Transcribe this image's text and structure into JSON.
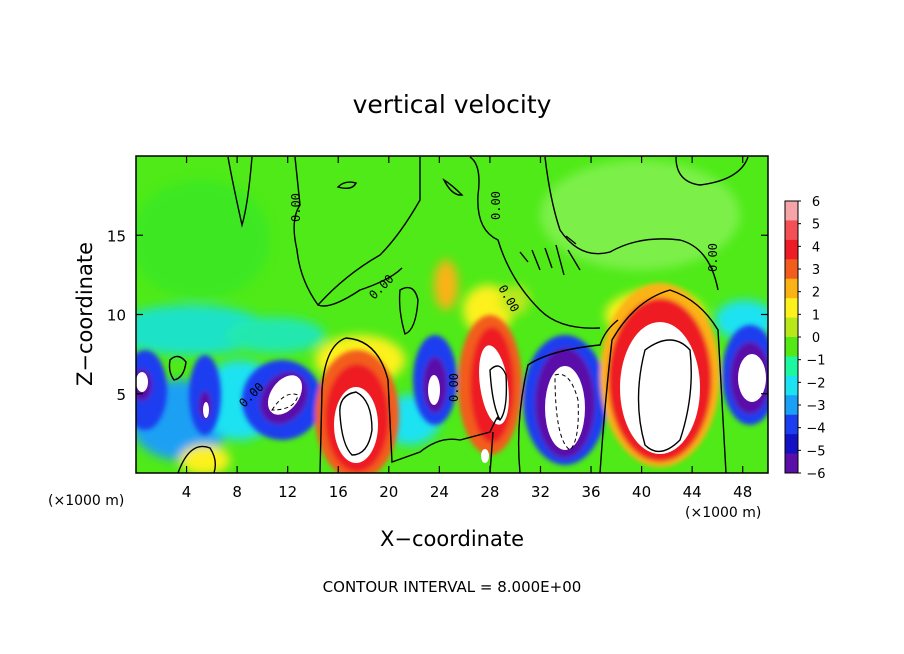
{
  "chart_data": {
    "type": "heatmap",
    "title": "vertical velocity",
    "xlabel": "X−coordinate",
    "ylabel": "Z−coordinate",
    "x_unit_left": "(×1000 m)",
    "x_unit_right": "(×1000 m)",
    "xlim": [
      0,
      50
    ],
    "ylim": [
      0,
      20
    ],
    "x_ticks": [
      4,
      8,
      12,
      16,
      20,
      24,
      28,
      32,
      36,
      40,
      44,
      48
    ],
    "y_ticks": [
      5,
      10,
      15
    ],
    "colorbar": {
      "ticks": [
        6,
        5,
        4,
        3,
        2,
        1,
        0,
        -1,
        -2,
        -3,
        -4,
        -5,
        -6
      ],
      "tick_labels": [
        "6",
        "5",
        "4",
        "3",
        "2",
        "1",
        "0",
        "−1",
        "−2",
        "−3",
        "−4",
        "−5",
        "−6"
      ],
      "colors": [
        "#f6a4a8",
        "#f44f55",
        "#ee1c24",
        "#f25d1e",
        "#fbb214",
        "#fcf11a",
        "#b8e81a",
        "#53e816",
        "#1cf7a0",
        "#1ce2f2",
        "#1aa0f4",
        "#1a3ef0",
        "#1410c4",
        "#5a0fa8"
      ]
    },
    "contour_interval_text": "CONTOUR INTERVAL = 8.000E+00",
    "contour_labels": [
      "0.00",
      "0.00",
      "0.00",
      "0.00",
      "0.00",
      "0.00",
      "0.00"
    ],
    "features": [
      {
        "kind": "updraft",
        "x_center": 17.5,
        "z_center": 3.0,
        "strength": 9
      },
      {
        "kind": "updraft",
        "x_center": 28.0,
        "z_center": 6.0,
        "strength": 8
      },
      {
        "kind": "updraft",
        "x_center": 41.5,
        "z_center": 5.5,
        "strength": 10
      },
      {
        "kind": "downdraft",
        "x_center": 12.0,
        "z_center": 5.0,
        "strength": -7
      },
      {
        "kind": "downdraft",
        "x_center": 24.5,
        "z_center": 5.5,
        "strength": -6
      },
      {
        "kind": "downdraft",
        "x_center": 33.5,
        "z_center": 4.5,
        "strength": -9
      },
      {
        "kind": "downdraft",
        "x_center": 48.0,
        "z_center": 6.0,
        "strength": -7
      },
      {
        "kind": "downdraft",
        "x_center": 0.5,
        "z_center": 6.0,
        "strength": -6
      },
      {
        "kind": "downdraft",
        "x_center": 5.5,
        "z_center": 4.0,
        "strength": -5
      }
    ]
  }
}
